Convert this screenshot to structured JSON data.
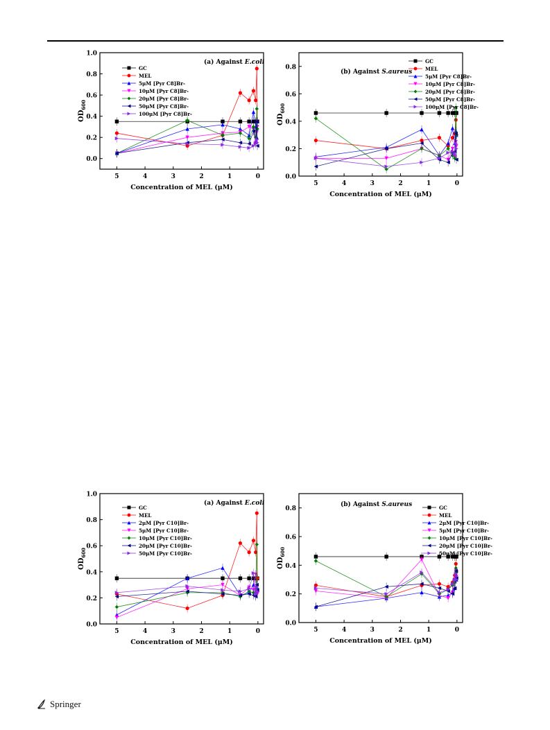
{
  "publisher": "Springer",
  "chart_data": [
    {
      "type": "line",
      "title": "(a) Against E.coli",
      "title_plain": "(a) Against ",
      "title_italic": "E.coli",
      "xlabel": "Concentration of MEL (μM)",
      "ylabel": "OD600",
      "xlim": [
        5.6,
        -0.2
      ],
      "ylim": [
        -0.1,
        1.0
      ],
      "xticks": [
        5,
        4,
        3,
        2,
        1,
        0
      ],
      "yticks": [
        0.0,
        0.2,
        0.4,
        0.6,
        0.8,
        1.0
      ],
      "legend_position": "top-left",
      "x": [
        5,
        2.5,
        1.25,
        0.625,
        0.3125,
        0.15625,
        0.078125,
        0.0390625,
        0.01953125
      ],
      "series": [
        {
          "name": "GC",
          "color": "#000000",
          "marker": "square",
          "values": [
            0.35,
            0.35,
            0.35,
            0.35,
            0.35,
            0.35,
            0.35,
            0.35,
            0.35
          ]
        },
        {
          "name": "MEL",
          "color": "#ff0000",
          "marker": "circle",
          "values": [
            0.24,
            0.12,
            0.22,
            0.62,
            0.55,
            0.64,
            0.55,
            0.85,
            0.35
          ]
        },
        {
          "name": "5μM [Pyr C8]Br-",
          "color": "#0000ff",
          "marker": "triangle-up",
          "values": [
            0.05,
            0.28,
            0.32,
            0.28,
            0.22,
            0.44,
            0.3,
            0.2,
            0.35
          ]
        },
        {
          "name": "10μM [Pyr C8]Br-",
          "color": "#ff00ff",
          "marker": "triangle-down",
          "values": [
            0.05,
            0.2,
            0.24,
            0.25,
            0.3,
            0.28,
            0.15,
            0.25,
            0.3
          ]
        },
        {
          "name": "20μM [Pyr C8]Br-",
          "color": "#008000",
          "marker": "diamond",
          "values": [
            0.05,
            0.36,
            0.22,
            0.24,
            0.19,
            0.3,
            0.2,
            0.47,
            0.28
          ]
        },
        {
          "name": "50μM [Pyr C8]Br-",
          "color": "#000080",
          "marker": "triangle-left",
          "values": [
            0.05,
            0.15,
            0.18,
            0.15,
            0.14,
            0.26,
            0.15,
            0.35,
            0.12
          ]
        },
        {
          "name": "100μM [Pyr C8]Br-",
          "color": "#8a2be2",
          "marker": "triangle-right",
          "values": [
            0.19,
            0.14,
            0.13,
            0.11,
            0.1,
            0.12,
            0.14,
            0.18,
            0.15
          ]
        }
      ]
    },
    {
      "type": "line",
      "title": "(b) Against S.aureus",
      "title_plain": "(b) Against ",
      "title_italic": "S.aureus",
      "xlabel": "Concentration of MEL (μM)",
      "ylabel": "OD600",
      "xlim": [
        5.6,
        -0.2
      ],
      "ylim": [
        0.0,
        0.9
      ],
      "xticks": [
        5,
        4,
        3,
        2,
        1,
        0
      ],
      "yticks": [
        0.0,
        0.2,
        0.4,
        0.6,
        0.8
      ],
      "legend_position": "top-right",
      "x": [
        5,
        2.5,
        1.25,
        0.625,
        0.3125,
        0.15625,
        0.078125,
        0.0390625,
        0.01953125
      ],
      "series": [
        {
          "name": "GC",
          "color": "#000000",
          "marker": "square",
          "values": [
            0.46,
            0.46,
            0.46,
            0.46,
            0.46,
            0.46,
            0.46,
            0.46,
            0.46
          ]
        },
        {
          "name": "MEL",
          "color": "#ff0000",
          "marker": "circle",
          "values": [
            0.26,
            0.2,
            0.26,
            0.28,
            0.22,
            0.28,
            0.31,
            0.41,
            0.3
          ]
        },
        {
          "name": "5μM [Pyr C8]Br-",
          "color": "#0000ff",
          "marker": "triangle-up",
          "values": [
            0.14,
            0.21,
            0.34,
            0.15,
            0.24,
            0.35,
            0.24,
            0.33,
            0.3
          ]
        },
        {
          "name": "10μM [Pyr C8]Br-",
          "color": "#ff00ff",
          "marker": "triangle-down",
          "values": [
            0.13,
            0.13,
            0.2,
            0.15,
            0.12,
            0.2,
            0.14,
            0.25,
            0.22
          ]
        },
        {
          "name": "20μM [Pyr C8]Br-",
          "color": "#008000",
          "marker": "diamond",
          "values": [
            0.42,
            0.05,
            0.2,
            0.15,
            0.2,
            0.15,
            0.13,
            0.5,
            0.3
          ]
        },
        {
          "name": "50μM [Pyr C8]Br-",
          "color": "#000080",
          "marker": "triangle-left",
          "values": [
            0.07,
            0.2,
            0.24,
            0.12,
            0.1,
            0.17,
            0.18,
            0.31,
            0.12
          ]
        },
        {
          "name": "100μM [Pyr C8]Br-",
          "color": "#8a2be2",
          "marker": "triangle-right",
          "values": [
            0.13,
            0.07,
            0.1,
            0.13,
            0.17,
            0.18,
            0.16,
            0.24,
            0.2
          ]
        }
      ]
    },
    {
      "type": "line",
      "title": "(a) Against E.coli",
      "title_plain": "(a) Against ",
      "title_italic": "E.coli",
      "xlabel": "Concentration of MEL (μM)",
      "ylabel": "OD600",
      "xlim": [
        5.6,
        -0.2
      ],
      "ylim": [
        0.0,
        1.0
      ],
      "xticks": [
        5,
        4,
        3,
        2,
        1,
        0
      ],
      "yticks": [
        0.0,
        0.2,
        0.4,
        0.6,
        0.8,
        1.0
      ],
      "legend_position": "top-left",
      "x": [
        5,
        2.5,
        1.25,
        0.625,
        0.3125,
        0.15625,
        0.078125,
        0.0390625,
        0.01953125
      ],
      "series": [
        {
          "name": "GC",
          "color": "#000000",
          "marker": "square",
          "values": [
            0.35,
            0.35,
            0.35,
            0.35,
            0.35,
            0.35,
            0.35,
            0.35,
            0.35
          ]
        },
        {
          "name": "MEL",
          "color": "#ff0000",
          "marker": "circle",
          "values": [
            0.23,
            0.12,
            0.22,
            0.62,
            0.55,
            0.64,
            0.55,
            0.85,
            0.35
          ]
        },
        {
          "name": "2μM [Pyr C10]Br-",
          "color": "#0000ff",
          "marker": "triangle-up",
          "values": [
            0.07,
            0.35,
            0.43,
            0.22,
            0.24,
            0.3,
            0.22,
            0.28,
            0.26
          ]
        },
        {
          "name": "5μM [Pyr C10]Br-",
          "color": "#ff00ff",
          "marker": "triangle-down",
          "values": [
            0.05,
            0.27,
            0.3,
            0.22,
            0.28,
            0.26,
            0.38,
            0.25,
            0.23
          ]
        },
        {
          "name": "10μM [Pyr C10]Br-",
          "color": "#008000",
          "marker": "diamond",
          "values": [
            0.13,
            0.24,
            0.24,
            0.21,
            0.25,
            0.24,
            0.23,
            0.61,
            0.27
          ]
        },
        {
          "name": "20μM [Pyr C10]Br-",
          "color": "#000080",
          "marker": "triangle-left",
          "values": [
            0.21,
            0.25,
            0.23,
            0.22,
            0.23,
            0.22,
            0.21,
            0.3,
            0.26
          ]
        },
        {
          "name": "50μM [Pyr C10]Br-",
          "color": "#8a2be2",
          "marker": "triangle-right",
          "values": [
            0.24,
            0.29,
            0.26,
            0.25,
            0.27,
            0.39,
            0.23,
            0.28,
            0.25
          ]
        }
      ]
    },
    {
      "type": "line",
      "title": "(b) Against S.aureus",
      "title_plain": "(b) Against ",
      "title_italic": "S.aureus",
      "xlabel": "Concentration of MEL (μM)",
      "ylabel": "OD600",
      "xlim": [
        5.6,
        -0.2
      ],
      "ylim": [
        0.0,
        0.9
      ],
      "xticks": [
        5,
        4,
        3,
        2,
        1,
        0
      ],
      "yticks": [
        0.0,
        0.2,
        0.4,
        0.6,
        0.8
      ],
      "legend_position": "top-right",
      "x": [
        5,
        2.5,
        1.25,
        0.625,
        0.3125,
        0.15625,
        0.078125,
        0.0390625,
        0.01953125
      ],
      "series": [
        {
          "name": "GC",
          "color": "#000000",
          "marker": "square",
          "values": [
            0.46,
            0.46,
            0.46,
            0.46,
            0.46,
            0.46,
            0.46,
            0.46,
            0.46
          ]
        },
        {
          "name": "MEL",
          "color": "#ff0000",
          "marker": "circle",
          "values": [
            0.26,
            0.18,
            0.26,
            0.27,
            0.25,
            0.28,
            0.33,
            0.41,
            0.36
          ]
        },
        {
          "name": "2μM [Pyr C10]Br-",
          "color": "#0000ff",
          "marker": "triangle-up",
          "values": [
            0.11,
            0.17,
            0.21,
            0.18,
            0.19,
            0.21,
            0.24,
            0.34,
            0.3
          ]
        },
        {
          "name": "5μM [Pyr C10]Br-",
          "color": "#ff00ff",
          "marker": "triangle-down",
          "values": [
            0.22,
            0.17,
            0.44,
            0.19,
            0.17,
            0.21,
            0.3,
            0.36,
            0.32
          ]
        },
        {
          "name": "10μM [Pyr C10]Br-",
          "color": "#008000",
          "marker": "diamond",
          "values": [
            0.43,
            0.18,
            0.34,
            0.2,
            0.23,
            0.26,
            0.28,
            0.38,
            0.35
          ]
        },
        {
          "name": "20μM [Pyr C10]Br-",
          "color": "#000080",
          "marker": "triangle-left",
          "values": [
            0.11,
            0.25,
            0.27,
            0.24,
            0.22,
            0.2,
            0.24,
            0.36,
            0.31
          ]
        },
        {
          "name": "50μM [Pyr C10]Br-",
          "color": "#8a2be2",
          "marker": "triangle-right",
          "values": [
            0.24,
            0.2,
            0.35,
            0.21,
            0.23,
            0.27,
            0.3,
            0.34,
            0.3
          ]
        }
      ]
    }
  ]
}
